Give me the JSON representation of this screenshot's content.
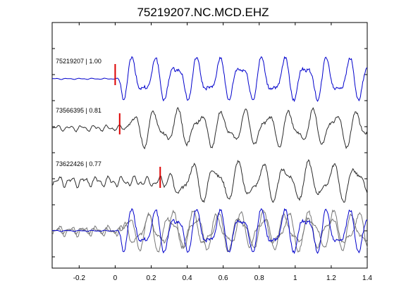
{
  "chart_data": {
    "type": "line",
    "title": "75219207.NC.MCD.EHZ",
    "xlabel": "",
    "ylabel": "",
    "xlim": [
      -0.35,
      1.4
    ],
    "x_ticks": [
      -0.2,
      0,
      0.2,
      0.4,
      0.6,
      0.8,
      1,
      1.2,
      1.4
    ],
    "x_tick_labels": [
      "-0.2",
      "0",
      "0.2",
      "0.4",
      "0.6",
      "0.8",
      "1",
      "1.2",
      "1.4"
    ],
    "grid": false,
    "colors": {
      "reference": "#0000cc",
      "trace": "#2b2b2b",
      "pick": "#dd0000",
      "overlay": "#777777"
    },
    "series": [
      {
        "name": "75219207 | 1.00",
        "color": "#0000cc",
        "pick_time": 0.0,
        "noise_amp": 0.03,
        "onset": 0.015,
        "period": 0.12,
        "amp": 1.0,
        "seed": 1
      },
      {
        "name": "73566395 | 0.81",
        "color": "#2b2b2b",
        "pick_time": 0.025,
        "noise_amp": 0.16,
        "onset": 0.03,
        "period": 0.125,
        "amp": 0.85,
        "seed": 2
      },
      {
        "name": "73622426 | 0.77",
        "color": "#2b2b2b",
        "pick_time": 0.25,
        "noise_amp": 0.28,
        "onset": 0.04,
        "period": 0.13,
        "amp": 0.9,
        "seed": 3
      }
    ]
  }
}
